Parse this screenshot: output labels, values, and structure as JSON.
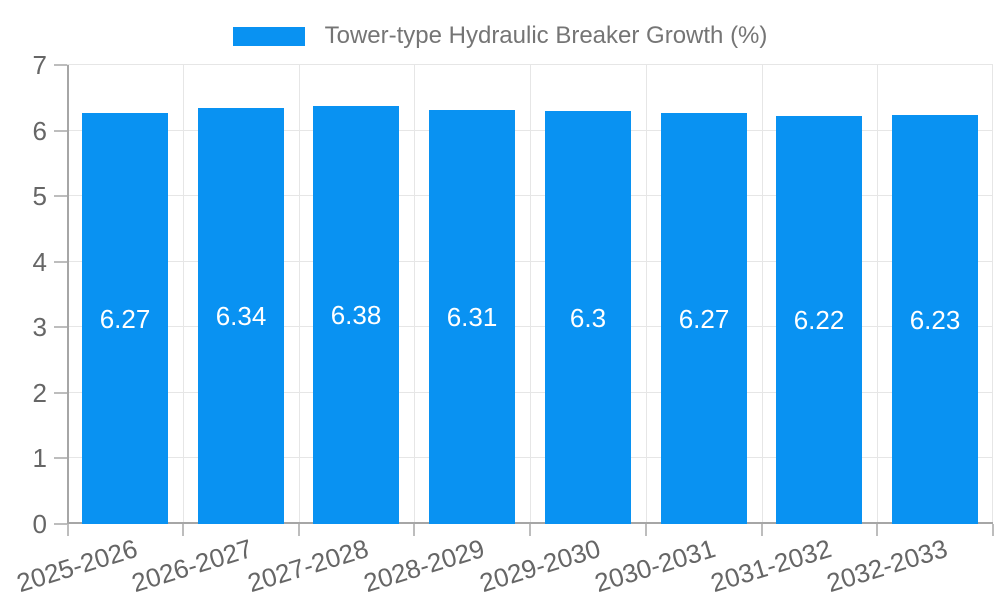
{
  "chart_data": {
    "type": "bar",
    "title": "Tower-type Hydraulic Breaker Growth (%)",
    "categories": [
      "2025-2026",
      "2026-2027",
      "2027-2028",
      "2028-2029",
      "2029-2030",
      "2030-2031",
      "2031-2032",
      "2032-2033"
    ],
    "values": [
      6.27,
      6.34,
      6.38,
      6.31,
      6.3,
      6.27,
      6.22,
      6.23
    ],
    "value_labels": [
      "6.27",
      "6.34",
      "6.38",
      "6.31",
      "6.3",
      "6.27",
      "6.22",
      "6.23"
    ],
    "xlabel": "",
    "ylabel": "",
    "ylim": [
      0,
      7
    ],
    "y_ticks": [
      0,
      1,
      2,
      3,
      4,
      5,
      6,
      7
    ],
    "grid": true,
    "legend_position": "top",
    "bar_color": "#0992f2",
    "bar_label_color": "#ffffff",
    "axis_label_color": "#666666",
    "title_color": "#757575",
    "grid_color": "#e6e6e6",
    "axis_line_color": "#a6a6a6"
  }
}
